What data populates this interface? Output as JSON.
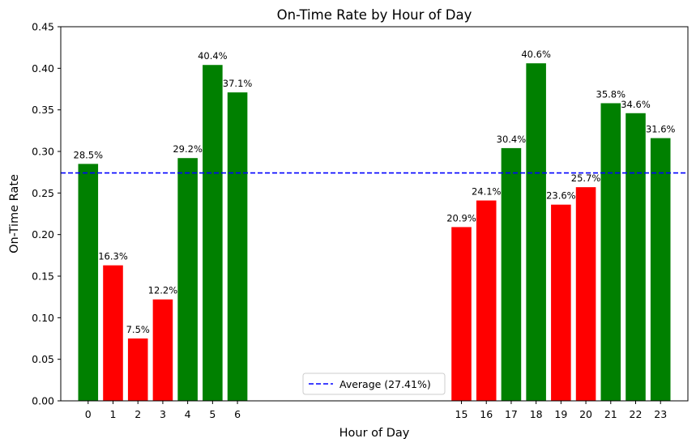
{
  "chart_data": {
    "type": "bar",
    "title": "On-Time Rate by Hour of Day",
    "xlabel": "Hour of Day",
    "ylabel": "On-Time Rate",
    "ylim": [
      0,
      0.45
    ],
    "xlim": [
      -1.1,
      24.1
    ],
    "yticks": [
      "0.00",
      "0.05",
      "0.10",
      "0.15",
      "0.20",
      "0.25",
      "0.30",
      "0.35",
      "0.40",
      "0.45"
    ],
    "categories": [
      0,
      1,
      2,
      3,
      4,
      5,
      6,
      15,
      16,
      17,
      18,
      19,
      20,
      21,
      22,
      23
    ],
    "values": [
      0.285,
      0.163,
      0.075,
      0.122,
      0.292,
      0.404,
      0.371,
      0.209,
      0.241,
      0.304,
      0.406,
      0.236,
      0.257,
      0.358,
      0.346,
      0.316
    ],
    "data_labels": [
      "28.5%",
      "16.3%",
      "7.5%",
      "12.2%",
      "29.2%",
      "40.4%",
      "37.1%",
      "20.9%",
      "24.1%",
      "30.4%",
      "40.6%",
      "23.6%",
      "25.7%",
      "35.8%",
      "34.6%",
      "31.6%"
    ],
    "above_color": "#008000",
    "below_color": "#ff0000",
    "average": {
      "value": 0.2741,
      "label": "Average (27.41%)",
      "color": "#0000ff",
      "style": "dashed"
    },
    "legend_placement": "lower center",
    "grid": false
  }
}
